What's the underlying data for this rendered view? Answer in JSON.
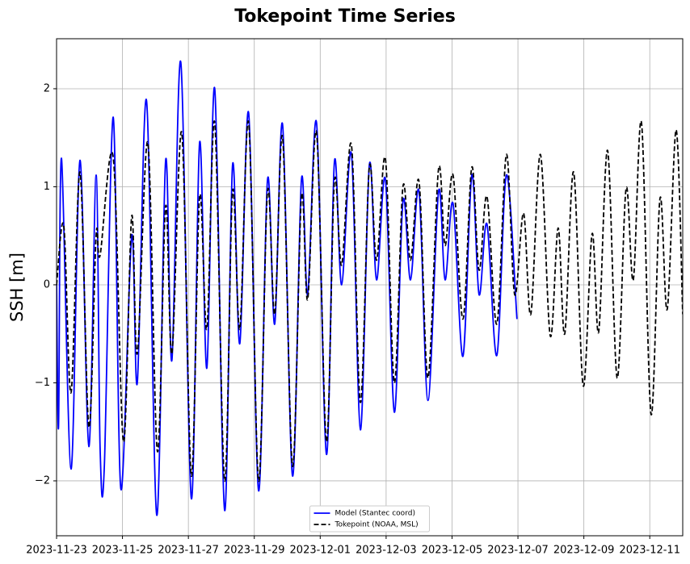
{
  "chart_data": {
    "type": "line",
    "title": "Tokepoint Time Series",
    "y_label": "SSH [m]",
    "xlim": [
      0,
      19.0
    ],
    "ylim": [
      -2.56,
      2.51
    ],
    "xticks": [
      {
        "value": 0,
        "label": "2023-11-23"
      },
      {
        "value": 2,
        "label": "2023-11-25"
      },
      {
        "value": 4,
        "label": "2023-11-27"
      },
      {
        "value": 6,
        "label": "2023-11-29"
      },
      {
        "value": 8,
        "label": "2023-12-01"
      },
      {
        "value": 10,
        "label": "2023-12-03"
      },
      {
        "value": 12,
        "label": "2023-12-05"
      },
      {
        "value": 14,
        "label": "2023-12-07"
      },
      {
        "value": 16,
        "label": "2023-12-09"
      },
      {
        "value": 18,
        "label": "2023-12-11"
      }
    ],
    "yticks": [
      {
        "value": -2,
        "label": "−2"
      },
      {
        "value": -1,
        "label": "−1"
      },
      0,
      1,
      2
    ],
    "grid": true,
    "legend": "lower center",
    "series": [
      {
        "name": "Model (Stantec coord)",
        "color": "#0000ff",
        "dash": "solid",
        "x": [
          0,
          0.06,
          0.15,
          0.44,
          0.71,
          0.98,
          1.2,
          1.32,
          1.45,
          1.72,
          1.95,
          2.28,
          2.45,
          2.73,
          3.04,
          3.31,
          3.5,
          3.77,
          4.09,
          4.34,
          4.56,
          4.8,
          5.1,
          5.34,
          5.56,
          5.83,
          6.13,
          6.4,
          6.62,
          6.86,
          7.16,
          7.43,
          7.62,
          7.89,
          8.19,
          8.43,
          8.65,
          8.95,
          9.22,
          9.49,
          9.71,
          9.98,
          10.25,
          10.51,
          10.74,
          11.0,
          11.27,
          11.59,
          11.79,
          12.03,
          12.33,
          12.6,
          12.82,
          13.06,
          13.36,
          13.65,
          13.97
        ],
        "values": [
          0.05,
          -1.45,
          1.29,
          -1.88,
          1.27,
          -1.65,
          1.12,
          -1.65,
          -1.85,
          1.71,
          -2.08,
          0.5,
          -1.0,
          1.88,
          -2.35,
          1.27,
          -0.77,
          2.27,
          -2.18,
          1.45,
          -0.85,
          2.0,
          -2.3,
          1.22,
          -0.6,
          1.75,
          -2.1,
          1.07,
          -0.4,
          1.63,
          -1.95,
          1.07,
          -0.1,
          1.65,
          -1.73,
          1.25,
          0.0,
          1.33,
          -1.48,
          1.22,
          0.05,
          1.07,
          -1.3,
          0.85,
          0.05,
          0.95,
          -1.18,
          0.95,
          0.05,
          0.83,
          -0.73,
          1.12,
          -0.1,
          0.62,
          -0.72,
          1.12,
          -0.35
        ]
      },
      {
        "name": "Tokepoint (NOAA, MSL)",
        "color": "#000000",
        "dash": "dashed",
        "x": [
          0,
          0.22,
          0.44,
          0.71,
          0.98,
          1.2,
          1.32,
          1.72,
          2.03,
          2.28,
          2.45,
          2.77,
          3.06,
          3.31,
          3.5,
          3.8,
          4.09,
          4.34,
          4.56,
          4.8,
          5.1,
          5.34,
          5.56,
          5.83,
          6.13,
          6.4,
          6.62,
          6.86,
          7.16,
          7.43,
          7.62,
          7.89,
          8.19,
          8.43,
          8.65,
          8.95,
          9.22,
          9.49,
          9.71,
          9.98,
          10.25,
          10.51,
          10.74,
          11.0,
          11.27,
          11.59,
          11.79,
          12.03,
          12.33,
          12.6,
          12.82,
          13.06,
          13.36,
          13.65,
          13.9,
          14.17,
          14.39,
          14.68,
          14.98,
          15.22,
          15.42,
          15.69,
          15.98,
          16.25,
          16.45,
          16.72,
          17.01,
          17.28,
          17.5,
          17.75,
          18.04,
          18.31,
          18.53,
          18.8,
          19.0
        ],
        "values": [
          0,
          0.6,
          -1.1,
          1.15,
          -1.45,
          0.5,
          0.3,
          1.3,
          -1.6,
          0.7,
          -0.7,
          1.45,
          -1.7,
          0.8,
          -0.7,
          1.55,
          -1.95,
          0.9,
          -0.45,
          1.65,
          -2.0,
          0.95,
          -0.45,
          1.65,
          -2.0,
          0.95,
          -0.3,
          1.5,
          -1.85,
          0.9,
          -0.15,
          1.55,
          -1.6,
          1.05,
          0.2,
          1.42,
          -1.2,
          1.2,
          0.25,
          1.28,
          -1.0,
          1.0,
          0.25,
          1.05,
          -0.95,
          1.18,
          0.4,
          1.12,
          -0.35,
          1.2,
          0.15,
          0.9,
          -0.4,
          1.33,
          -0.1,
          0.73,
          -0.3,
          1.33,
          -0.52,
          0.58,
          -0.5,
          1.15,
          -1.03,
          0.52,
          -0.48,
          1.37,
          -0.95,
          0.98,
          0.05,
          1.65,
          -1.32,
          0.88,
          -0.25,
          1.58,
          -0.3
        ]
      }
    ]
  }
}
